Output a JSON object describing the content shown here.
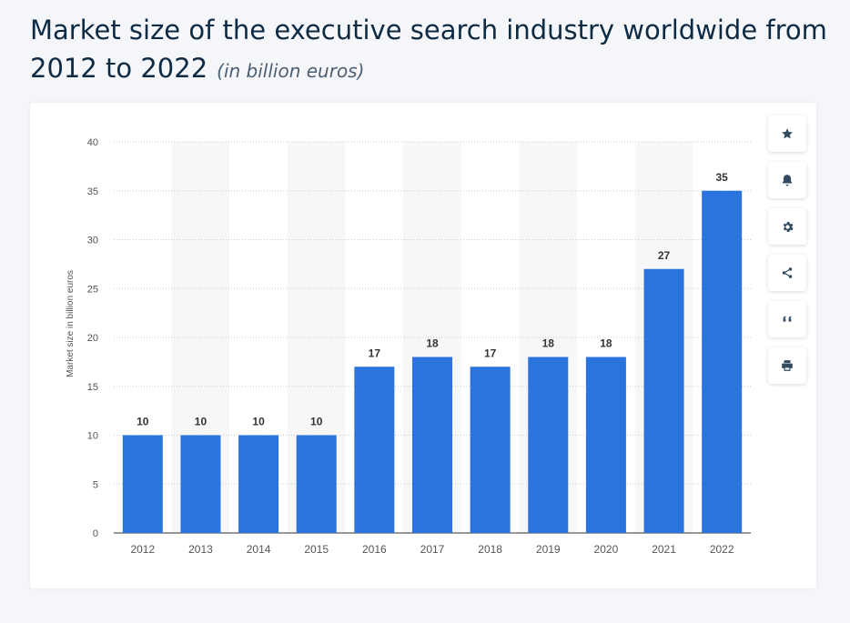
{
  "header": {
    "title": "Market size of the executive search industry worldwide from 2012 to 2022",
    "subtitle": "(in billion euros)"
  },
  "toolbar": {
    "buttons": [
      {
        "icon": "star-icon"
      },
      {
        "icon": "bell-icon"
      },
      {
        "icon": "gear-icon"
      },
      {
        "icon": "share-icon"
      },
      {
        "icon": "quote-icon"
      },
      {
        "icon": "print-icon"
      }
    ]
  },
  "colors": {
    "bar": "#2b74de",
    "band": "#f7f7f8",
    "grid": "#c9cdd2",
    "text": "#333333",
    "axis_text": "#555555",
    "icon": "#344a60"
  },
  "chart_data": {
    "type": "bar",
    "title": "Market size of the executive search industry worldwide from 2012 to 2022",
    "subtitle": "(in billion euros)",
    "xlabel": "",
    "ylabel": "Market size in billion euros",
    "categories": [
      "2012",
      "2013",
      "2014",
      "2015",
      "2016",
      "2017",
      "2018",
      "2019",
      "2020",
      "2021",
      "2022"
    ],
    "values": [
      10,
      10,
      10,
      10,
      17,
      18,
      17,
      18,
      18,
      27,
      35
    ],
    "ylim": [
      0,
      40
    ],
    "yticks": [
      0,
      5,
      10,
      15,
      20,
      25,
      30,
      35,
      40
    ],
    "grid": true,
    "data_labels": true
  }
}
